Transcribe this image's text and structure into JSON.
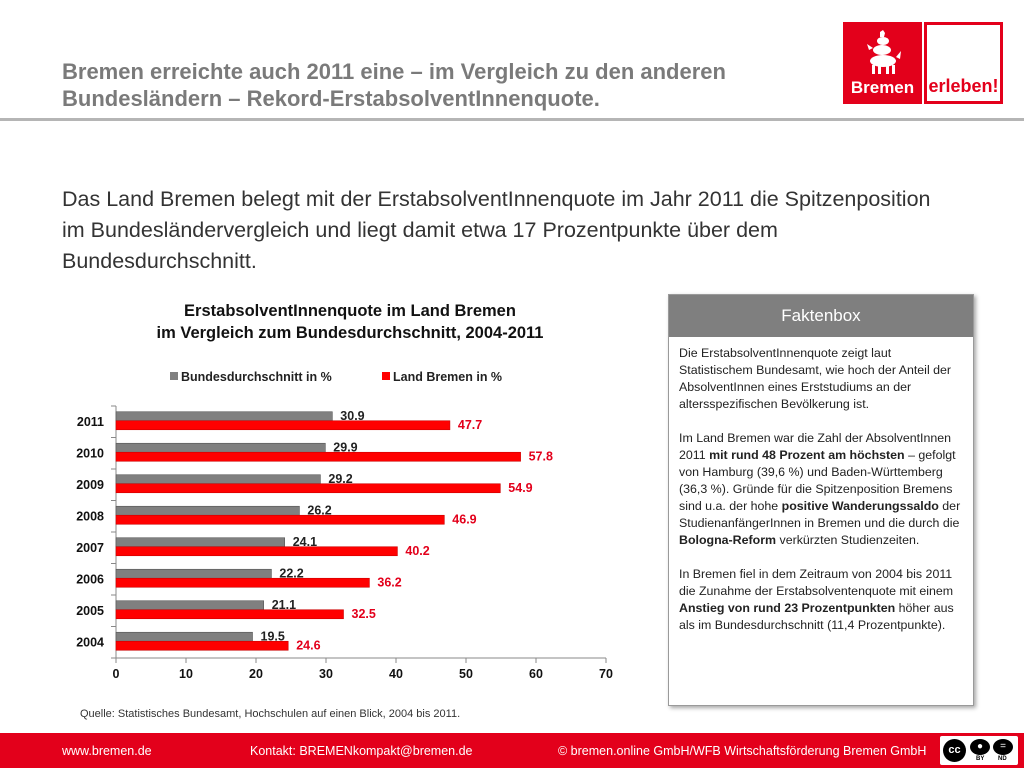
{
  "header": {
    "title": "Bremen erreichte auch 2011 eine – im Vergleich zu den anderen Bundesländern – Rekord-ErstabsolventInnenquote.",
    "logo_left": "Bremen",
    "logo_right": "erleben!"
  },
  "intro": "Das Land Bremen belegt mit der ErstabsolventInnenquote im Jahr 2011 die Spitzenposition im Bundesländervergleich und liegt damit etwa 17 Prozentpunkte über dem Bundesdurchschnitt.",
  "chart_data": {
    "type": "bar",
    "orientation": "horizontal",
    "title_line1": "ErstabsolventInnenquote im Land Bremen",
    "title_line2": "im Vergleich zum Bundesdurchschnitt, 2004-2011",
    "categories": [
      "2011",
      "2010",
      "2009",
      "2008",
      "2007",
      "2006",
      "2005",
      "2004"
    ],
    "series": [
      {
        "name": "Bundesdurchschnitt in %",
        "color": "#808080",
        "label_color": "#222222",
        "values": [
          30.9,
          29.9,
          29.2,
          26.2,
          24.1,
          22.2,
          21.1,
          19.5
        ]
      },
      {
        "name": "Land Bremen in %",
        "color": "#ff0000",
        "label_color": "#e3001b",
        "values": [
          47.7,
          57.8,
          54.9,
          46.9,
          40.2,
          36.2,
          32.5,
          24.6
        ]
      }
    ],
    "xlim": [
      0,
      70
    ],
    "xticks": [
      0,
      10,
      20,
      30,
      40,
      50,
      60,
      70
    ],
    "legend_position": "top",
    "grid": false
  },
  "faktenbox": {
    "title": "Faktenbox",
    "p1": "Die ErstabsolventInnenquote zeigt laut Statistischem Bundesamt, wie hoch der Anteil der AbsolventInnen eines Erststudiums an der altersspezifischen Bevölkerung ist.",
    "p2_a": "Im Land Bremen war die Zahl der AbsolventInnen 2011 ",
    "p2_b": "mit rund 48 Prozent am höchsten",
    "p2_c": " – gefolgt von Hamburg (39,6 %) und Baden-Württemberg (36,3 %). Gründe für die Spitzenposition Bremens sind u.a. der hohe ",
    "p2_d": "positive Wanderungssaldo",
    "p2_e": " der StudienanfängerInnen in Bremen und die durch die ",
    "p2_f": "Bologna-Reform",
    "p2_g": " verkürzten Studienzeiten.",
    "p3_a": "In Bremen fiel in dem Zeitraum von 2004 bis 2011 die Zunahme der Erstabsolventenquote mit einem ",
    "p3_b": "Anstieg von rund 23 Prozentpunkten",
    "p3_c": " höher aus als im Bundesdurchschnitt (11,4 Prozentpunkte)."
  },
  "source": "Quelle: Statistisches Bundesamt, Hochschulen auf einen Blick, 2004 bis 2011.",
  "footer": {
    "website": "www.bremen.de",
    "contact": "Kontakt: BREMENkompakt@bremen.de",
    "copyright": "© bremen.online GmbH/WFB Wirtschaftsförderung Bremen GmbH",
    "cc_by": "BY",
    "cc_nd": "ND"
  }
}
